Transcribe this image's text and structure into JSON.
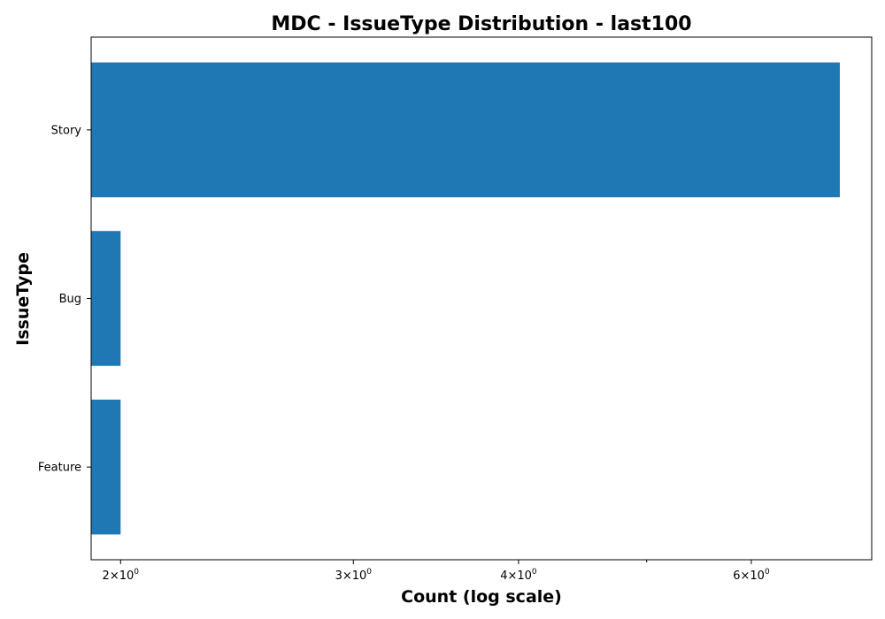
{
  "chart_data": {
    "type": "bar",
    "orientation": "horizontal",
    "title": "MDC - IssueType Distribution - last100",
    "xlabel": "Count (log scale)",
    "ylabel": "IssueType",
    "x_scale": "log",
    "xlim": [
      1.9,
      7.4
    ],
    "categories": [
      "Story",
      "Bug",
      "Feature"
    ],
    "values": [
      7,
      2,
      2
    ],
    "bar_color": "#1f77b4",
    "x_ticks": [
      {
        "value": 2,
        "base": "2",
        "mult": "×",
        "exp_base": "10",
        "exp": "0"
      },
      {
        "value": 3,
        "base": "3",
        "mult": "×",
        "exp_base": "10",
        "exp": "0"
      },
      {
        "value": 4,
        "base": "4",
        "mult": "×",
        "exp_base": "10",
        "exp": "0"
      },
      {
        "value": 6,
        "base": "6",
        "mult": "×",
        "exp_base": "10",
        "exp": "0"
      }
    ],
    "x_minor_ticks": [
      5
    ],
    "grid": false,
    "legend": "none"
  }
}
